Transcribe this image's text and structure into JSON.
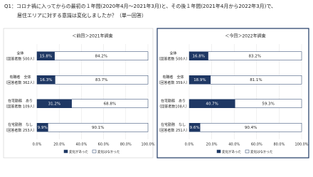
{
  "header": {
    "lines": [
      "Q1：コロナ禍に入ってからの最初の１年間(2020年4月～2021年3月)と、その後１年間(2021年4月から2022年3月)で、",
      "居住エリアに対する意識は変化しましたか？（単一回答）"
    ]
  },
  "chart_data": [
    {
      "type": "bar",
      "orientation": "horizontal",
      "stacked": true,
      "title": "＜前回＞2021年調査",
      "categories": [
        "全体",
        "有職者　全体",
        "在宅勤務　あり",
        "在宅勤務　なし"
      ],
      "category_notes": [
        "（回答者数 500人）",
        "（回答者数 362人）",
        "（回答者数 109人）",
        "（回答者数 253人）"
      ],
      "series": [
        {
          "name": "変化があった",
          "color": "#1f3864",
          "values": [
            15.8,
            16.3,
            31.2,
            9.9
          ],
          "value_labels": [
            "15.8%",
            "16.3%",
            "31.2%",
            "9.9%"
          ]
        },
        {
          "name": "変化はなかった",
          "color": "#ffffff",
          "values": [
            84.2,
            83.7,
            68.8,
            90.1
          ],
          "value_labels": [
            "84.2%",
            "83.7%",
            "68.8%",
            "90.1%"
          ]
        }
      ],
      "xlim": [
        0,
        100
      ],
      "xticks": [
        {
          "value": 0,
          "label": "0.0%"
        },
        {
          "value": 20,
          "label": "20.0%"
        },
        {
          "value": 40,
          "label": "40.0%"
        },
        {
          "value": 60,
          "label": "60.0%"
        },
        {
          "value": 80,
          "label": "80.0%"
        },
        {
          "value": 100,
          "label": "100.0%"
        }
      ],
      "grid": true,
      "highlight": false
    },
    {
      "type": "bar",
      "orientation": "horizontal",
      "stacked": true,
      "title": "＜今回＞2022年調査",
      "categories": [
        "全体",
        "有職者　全体",
        "在宅勤務　あり",
        "在宅勤務　なし"
      ],
      "category_notes": [
        "（回答者数 500人）",
        "（回答者数 359人）",
        "（回答者数108人）",
        "（回答者数 251人）"
      ],
      "series": [
        {
          "name": "変化があった",
          "color": "#1f3864",
          "values": [
            16.8,
            18.9,
            40.7,
            9.6
          ],
          "value_labels": [
            "16.8%",
            "18.9%",
            "40.7%",
            "9.6%"
          ]
        },
        {
          "name": "変化はなかった",
          "color": "#ffffff",
          "values": [
            83.2,
            81.1,
            59.3,
            90.4
          ],
          "value_labels": [
            "83.2%",
            "81.1%",
            "59.3%",
            "90.4%"
          ]
        }
      ],
      "xlim": [
        0,
        100
      ],
      "xticks": [
        {
          "value": 0,
          "label": "0.0%"
        },
        {
          "value": 20,
          "label": "20.0%"
        },
        {
          "value": 40,
          "label": "40.0%"
        },
        {
          "value": 60,
          "label": "60.0%"
        },
        {
          "value": 80,
          "label": "80.0%"
        },
        {
          "value": 100,
          "label": "100.0%"
        }
      ],
      "grid": true,
      "highlight": true
    }
  ]
}
